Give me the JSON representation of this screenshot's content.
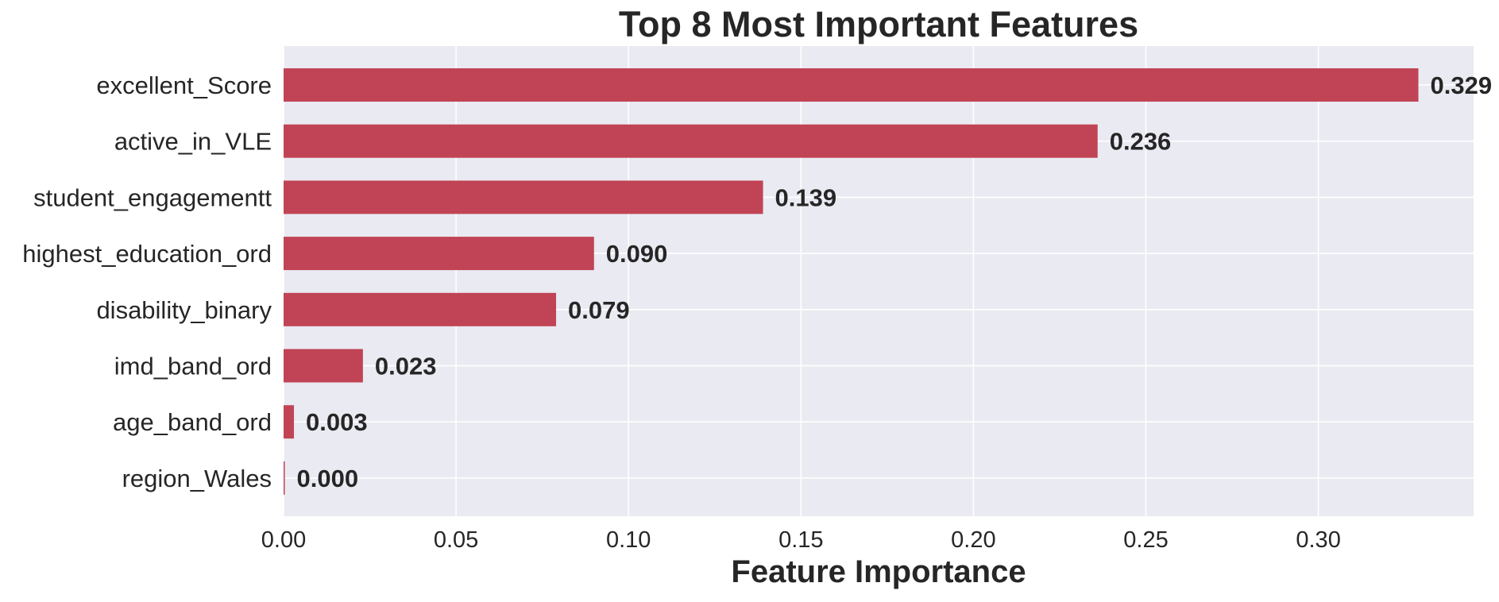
{
  "chart_data": {
    "type": "bar",
    "orientation": "horizontal",
    "title": "Top 8 Most Important Features",
    "xlabel": "Feature Importance",
    "ylabel": "",
    "categories": [
      "excellent_Score",
      "active_in_VLE",
      "student_engagementt",
      "highest_education_ord",
      "disability_binary",
      "imd_band_ord",
      "age_band_ord",
      "region_Wales"
    ],
    "values": [
      0.329,
      0.236,
      0.139,
      0.09,
      0.079,
      0.023,
      0.003,
      0.0
    ],
    "value_labels": [
      "0.329",
      "0.236",
      "0.139",
      "0.090",
      "0.079",
      "0.023",
      "0.003",
      "0.000"
    ],
    "xlim": [
      0,
      0.345
    ],
    "xticks": [
      0.0,
      0.05,
      0.1,
      0.15,
      0.2,
      0.25,
      0.3
    ],
    "xtick_labels": [
      "0.00",
      "0.05",
      "0.10",
      "0.15",
      "0.20",
      "0.25",
      "0.30"
    ],
    "grid": true,
    "legend": "none",
    "colors": {
      "bar": "#c04455",
      "plot_background": "#eaeaf2",
      "grid": "#ffffff",
      "text": "#262626"
    }
  }
}
